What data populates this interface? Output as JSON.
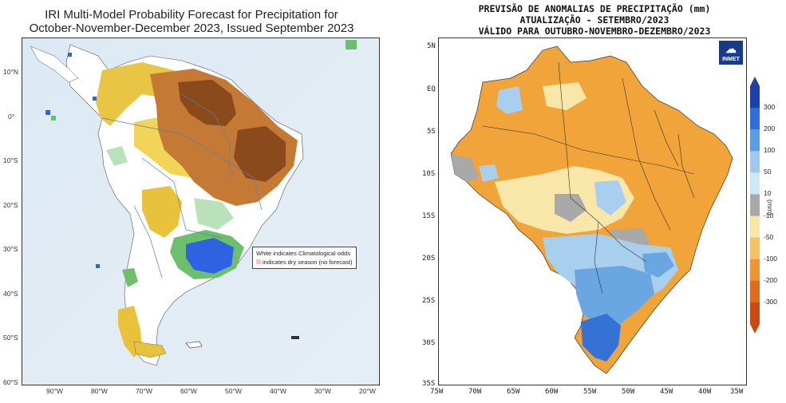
{
  "left": {
    "title_line1": "IRI Multi-Model Probability Forecast for Precipitation for",
    "title_line2": "October-November-December 2023, Issued September 2023",
    "lat_ticks": [
      "10°N",
      "0°",
      "10°S",
      "20°S",
      "30°S",
      "40°S",
      "50°S",
      "60°S"
    ],
    "lon_ticks": [
      "90°W",
      "80°W",
      "70°W",
      "60°W",
      "50°W",
      "40°W",
      "30°W",
      "20°W"
    ],
    "legend_line1": "White indicates Climatological odds",
    "legend_line2": "indicates dry season (no forecast)",
    "colors": {
      "below_strong": "#8b4a1c",
      "below_mid": "#c47a35",
      "below_weak": "#e8c23a",
      "below_light": "#f3e28a",
      "above_light": "#b9e2b9",
      "above_mid": "#6dbf6d",
      "above_strong": "#2f62e0",
      "ocean": "#dbe8f3"
    }
  },
  "right": {
    "title_line1": "PREVISÃO DE ANOMALIAS DE PRECIPITAÇÃO (mm)",
    "title_line2": "ATUALIZAÇÃO - SETEMBRO/2023",
    "title_line3": "VÁLIDO PARA OUTUBRO-NOVEMBRO-DEZEMBRO/2023",
    "logo_text": "INMET",
    "lat_ticks": [
      "5N",
      "EQ",
      "5S",
      "10S",
      "15S",
      "20S",
      "25S",
      "30S",
      "35S"
    ],
    "lon_ticks": [
      "75W",
      "70W",
      "65W",
      "60W",
      "55W",
      "50W",
      "45W",
      "40W",
      "35W"
    ],
    "colorbar_labels": [
      "300",
      "200",
      "100",
      "50",
      "10",
      "-10",
      "-50",
      "-100",
      "-200",
      "-300"
    ],
    "colorbar_unit": "(mm)",
    "colorbar_colors": [
      "#1f3fa8",
      "#2d6fd6",
      "#5b9ee0",
      "#9ec9ec",
      "#cfe8f6",
      "#a8a8a8",
      "#f7e7a6",
      "#f5c162",
      "#ee9533",
      "#e06a1e",
      "#c94a12"
    ],
    "colors": {
      "orange": "#f0a43a",
      "light_orange": "#f6c46b",
      "cream": "#f8e7a9",
      "gray": "#a9a9a9",
      "light_blue": "#a9cfee",
      "blue": "#6aa6e2",
      "dark_blue": "#3572d6"
    }
  }
}
